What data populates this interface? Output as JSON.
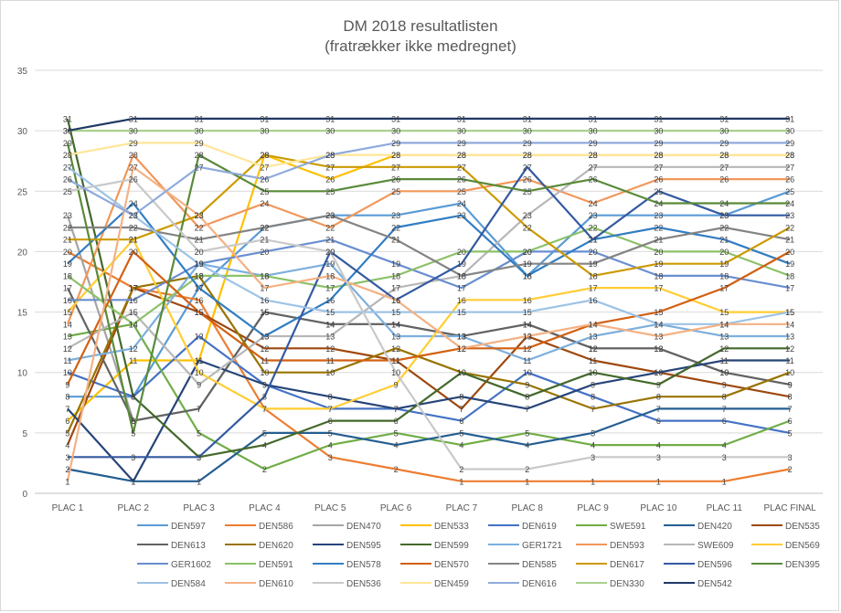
{
  "chart_data": {
    "type": "line",
    "title": "DM 2018  resultatlisten",
    "subtitle": "(fratrækker ikke medregnet)",
    "xlabel": "",
    "ylabel": "",
    "ylim": [
      0,
      35
    ],
    "yticks": [
      "0",
      "5",
      "10",
      "15",
      "20",
      "25",
      "30",
      "35"
    ],
    "grid": true,
    "legend": "bottom",
    "data_labels": true,
    "categories": [
      "PLAC 1",
      "PLAC 2",
      "PLAC 3",
      "PLAC 4",
      "PLAC 5",
      "PLAC 6",
      "PLAC 7",
      "PLAC 8",
      "PLAC 9",
      "PLAC 10",
      "PLAC 11",
      "PLAC FINAL"
    ],
    "series": [
      {
        "name": "DEN597",
        "color": "#5b9bd5",
        "values": [
          8,
          8,
          17,
          22,
          23,
          23,
          24,
          18,
          23,
          23,
          23,
          25
        ]
      },
      {
        "name": "DEN586",
        "color": "#ed7d31",
        "values": [
          20,
          17,
          16,
          7,
          3,
          2,
          1,
          1,
          1,
          1,
          1,
          2
        ]
      },
      {
        "name": "DEN470",
        "color": "#a5a5a5",
        "values": [
          23,
          6,
          7,
          15,
          14,
          14,
          13,
          14,
          12,
          12,
          10,
          9
        ]
      },
      {
        "name": "DEN533",
        "color": "#ffc000",
        "values": [
          6,
          11,
          11,
          28,
          26,
          28,
          28,
          28,
          28,
          28,
          28,
          28
        ]
      },
      {
        "name": "DEN619",
        "color": "#4472c4",
        "values": [
          10,
          8,
          13,
          9,
          7,
          7,
          6,
          10,
          8,
          6,
          6,
          5
        ]
      },
      {
        "name": "SWE591",
        "color": "#70ad47",
        "values": [
          13,
          14,
          5,
          2,
          4,
          5,
          4,
          5,
          4,
          4,
          4,
          6
        ]
      },
      {
        "name": "DEN420",
        "color": "#255e91",
        "values": [
          2,
          1,
          1,
          5,
          5,
          4,
          5,
          4,
          5,
          7,
          7,
          7
        ]
      },
      {
        "name": "DEN535",
        "color": "#9e480e",
        "values": [
          4,
          17,
          15,
          12,
          12,
          11,
          7,
          13,
          11,
          10,
          9,
          8
        ]
      },
      {
        "name": "DEN613",
        "color": "#636363",
        "values": [
          17,
          6,
          7,
          15,
          14,
          14,
          13,
          14,
          12,
          12,
          10,
          9
        ]
      },
      {
        "name": "DEN620",
        "color": "#997300",
        "values": [
          5,
          17,
          18,
          10,
          10,
          12,
          10,
          9,
          7,
          8,
          8,
          10
        ]
      },
      {
        "name": "DEN595",
        "color": "#264478",
        "values": [
          7,
          1,
          11,
          9,
          8,
          7,
          8,
          7,
          9,
          10,
          11,
          11
        ]
      },
      {
        "name": "DEN599",
        "color": "#43682b",
        "values": [
          31,
          8,
          3,
          4,
          6,
          6,
          10,
          8,
          10,
          9,
          12,
          12
        ]
      },
      {
        "name": "GER1721",
        "color": "#7cafdd",
        "values": [
          11,
          12,
          19,
          18,
          19,
          13,
          13,
          11,
          13,
          14,
          13,
          13
        ]
      },
      {
        "name": "DEN593",
        "color": "#f1975a",
        "values": [
          14,
          28,
          22,
          24,
          22,
          25,
          25,
          26,
          24,
          26,
          26,
          26
        ]
      },
      {
        "name": "SWE609",
        "color": "#b7b7b7",
        "values": [
          12,
          15,
          9,
          13,
          13,
          17,
          18,
          23,
          27,
          27,
          27,
          27
        ]
      },
      {
        "name": "DEN569",
        "color": "#ffcd33",
        "values": [
          15,
          21,
          10,
          7,
          7,
          9,
          16,
          16,
          17,
          17,
          15,
          15
        ]
      },
      {
        "name": "GER1602",
        "color": "#698ed0",
        "values": [
          16,
          16,
          19,
          20,
          21,
          19,
          17,
          20,
          20,
          18,
          18,
          17
        ]
      },
      {
        "name": "DEN591",
        "color": "#8cc168",
        "values": [
          18,
          14,
          18,
          18,
          17,
          18,
          20,
          20,
          22,
          20,
          20,
          18
        ]
      },
      {
        "name": "DEN578",
        "color": "#327dc2",
        "values": [
          19,
          24,
          17,
          13,
          16,
          22,
          23,
          18,
          21,
          22,
          21,
          19
        ]
      },
      {
        "name": "DEN570",
        "color": "#d26012",
        "values": [
          9,
          20,
          15,
          11,
          11,
          11,
          12,
          12,
          14,
          15,
          17,
          20
        ]
      },
      {
        "name": "DEN585",
        "color": "#848484",
        "values": [
          22,
          22,
          21,
          22,
          23,
          21,
          18,
          19,
          19,
          21,
          22,
          21
        ]
      },
      {
        "name": "DEN617",
        "color": "#cc9a00",
        "values": [
          21,
          21,
          23,
          28,
          27,
          27,
          27,
          22,
          18,
          19,
          19,
          22
        ]
      },
      {
        "name": "DEN596",
        "color": "#335aa1",
        "values": [
          3,
          3,
          3,
          8,
          20,
          16,
          19,
          27,
          21,
          25,
          23,
          23
        ]
      },
      {
        "name": "DEN395",
        "color": "#5a8a39",
        "values": [
          29,
          5,
          28,
          25,
          25,
          26,
          26,
          25,
          26,
          24,
          24,
          24
        ]
      },
      {
        "name": "DEN584",
        "color": "#9dc3e6",
        "values": [
          27,
          23,
          19,
          16,
          15,
          15,
          15,
          15,
          16,
          14,
          14,
          15
        ]
      },
      {
        "name": "DEN610",
        "color": "#f4b183",
        "values": [
          1,
          27,
          23,
          17,
          18,
          16,
          12,
          13,
          14,
          13,
          14,
          14
        ]
      },
      {
        "name": "DEN536",
        "color": "#c9c9c9",
        "values": [
          25,
          26,
          20,
          21,
          20,
          10,
          2,
          2,
          3,
          3,
          3,
          3
        ]
      },
      {
        "name": "DEN459",
        "color": "#ffe699",
        "values": [
          28,
          29,
          29,
          27,
          28,
          28,
          28,
          28,
          28,
          28,
          28,
          28
        ]
      },
      {
        "name": "DEN616",
        "color": "#8faadc",
        "values": [
          26,
          23,
          27,
          26,
          28,
          29,
          29,
          29,
          29,
          29,
          29,
          29
        ]
      },
      {
        "name": "DEN330",
        "color": "#a9d18e",
        "values": [
          30,
          30,
          30,
          30,
          30,
          30,
          30,
          30,
          30,
          30,
          30,
          30
        ]
      },
      {
        "name": "DEN542",
        "color": "#203864",
        "values": [
          30,
          31,
          31,
          31,
          31,
          31,
          31,
          31,
          31,
          31,
          31,
          31
        ]
      }
    ]
  }
}
